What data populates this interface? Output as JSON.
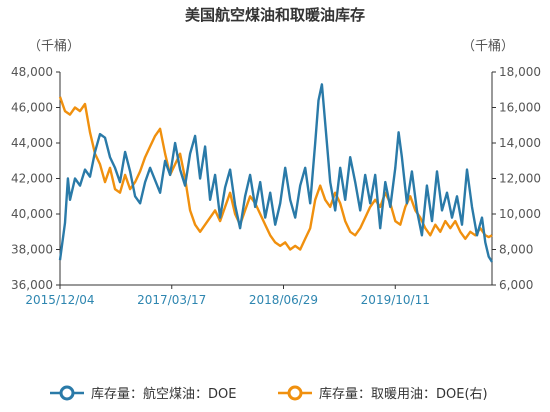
{
  "chart_data": {
    "type": "line",
    "title": "美国航空煤油和取暖油库存",
    "left_unit": "（千桶）",
    "right_unit": "（千桶）",
    "x_start": "2015/12/04",
    "x_end": "2020/11/20",
    "x_tick_labels": [
      "2015/12/04",
      "2017/03/17",
      "2018/06/29",
      "2019/10/11"
    ],
    "y_left": {
      "min": 36000,
      "max": 48000,
      "step": 2000,
      "tick_labels": [
        "36,000",
        "38,000",
        "40,000",
        "42,000",
        "44,000",
        "46,000",
        "48,000"
      ]
    },
    "y_right": {
      "min": 6000,
      "max": 18000,
      "step": 2000,
      "tick_labels": [
        "6,000",
        "8,000",
        "10,000",
        "12,000",
        "14,000",
        "16,000",
        "18,000"
      ]
    },
    "grid": false,
    "legend_position": "bottom",
    "series": [
      {
        "name": "库存量：航空煤油：DOE",
        "axis": "left",
        "color": "#2a7aa8",
        "points": [
          [
            "2015/12/04",
            37400
          ],
          [
            "2015/12/25",
            39500
          ],
          [
            "2016/01/15",
            40800
          ],
          [
            "2016/02/05",
            42000
          ],
          [
            "2016/02/26",
            41600
          ],
          [
            "2016/03/18",
            42500
          ],
          [
            "2016/04/08",
            42100
          ],
          [
            "2016/04/29",
            43500
          ],
          [
            "2016/05/20",
            44500
          ],
          [
            "2016/06/10",
            44300
          ],
          [
            "2016/07/01",
            43200
          ],
          [
            "2016/07/22",
            42600
          ],
          [
            "2016/08/12",
            41800
          ],
          [
            "2016/09/02",
            43500
          ],
          [
            "2016/09/23",
            42400
          ],
          [
            "2016/10/14",
            41000
          ],
          [
            "2016/11/04",
            40600
          ],
          [
            "2016/11/25",
            41800
          ],
          [
            "2016/12/16",
            42600
          ],
          [
            "2016/01/06",
            42000
          ],
          [
            "2017/01/27",
            41200
          ],
          [
            "2017/02/17",
            43000
          ],
          [
            "2017/03/10",
            42200
          ],
          [
            "2017/03/31",
            44000
          ],
          [
            "2017/04/21",
            42500
          ],
          [
            "2017/05/12",
            41600
          ],
          [
            "2017/06/02",
            43400
          ],
          [
            "2017/06/23",
            44400
          ],
          [
            "2017/07/14",
            42000
          ],
          [
            "2017/08/04",
            43800
          ],
          [
            "2017/08/25",
            40800
          ],
          [
            "2017/09/15",
            42200
          ],
          [
            "2017/10/06",
            39800
          ],
          [
            "2017/10/27",
            41500
          ],
          [
            "2017/11/17",
            42500
          ],
          [
            "2017/12/08",
            40500
          ],
          [
            "2017/12/29",
            39200
          ],
          [
            "2018/01/19",
            41000
          ],
          [
            "2018/02/09",
            42200
          ],
          [
            "2018/03/02",
            40400
          ],
          [
            "2018/03/23",
            41800
          ],
          [
            "2018/04/13",
            39800
          ],
          [
            "2018/05/04",
            41200
          ],
          [
            "2018/05/25",
            39400
          ],
          [
            "2018/06/15",
            40600
          ],
          [
            "2018/07/06",
            42600
          ],
          [
            "2018/07/27",
            40800
          ],
          [
            "2018/08/17",
            39800
          ],
          [
            "2018/09/07",
            41600
          ],
          [
            "2018/09/28",
            42600
          ],
          [
            "2018/10/19",
            40600
          ],
          [
            "2018/11/09",
            44000
          ],
          [
            "2018/11/23",
            46400
          ],
          [
            "2018/12/07",
            47300
          ],
          [
            "2018/12/28",
            44000
          ],
          [
            "2019/01/11",
            41800
          ],
          [
            "2019/02/01",
            40200
          ],
          [
            "2019/02/22",
            42600
          ],
          [
            "2019/03/15",
            40800
          ],
          [
            "2019/04/05",
            43200
          ],
          [
            "2019/04/26",
            41800
          ],
          [
            "2019/05/17",
            40200
          ],
          [
            "2019/06/07",
            42200
          ],
          [
            "2019/06/28",
            40600
          ],
          [
            "2019/07/19",
            42200
          ],
          [
            "2019/08/09",
            39200
          ],
          [
            "2019/08/30",
            41800
          ],
          [
            "2019/09/20",
            40400
          ],
          [
            "2019/10/11",
            42600
          ],
          [
            "2019/10/25",
            44600
          ],
          [
            "2019/11/08",
            43200
          ],
          [
            "2019/11/29",
            40600
          ],
          [
            "2019/12/20",
            42400
          ],
          [
            "2020/01/10",
            40200
          ],
          [
            "2020/01/31",
            38800
          ],
          [
            "2020/02/21",
            41600
          ],
          [
            "2020/03/13",
            39600
          ],
          [
            "2020/04/03",
            42400
          ],
          [
            "2020/04/24",
            40200
          ],
          [
            "2020/05/15",
            41200
          ],
          [
            "2020/06/05",
            39800
          ],
          [
            "2020/06/26",
            41000
          ],
          [
            "2020/07/17",
            39400
          ],
          [
            "2020/08/07",
            42500
          ],
          [
            "2020/08/28",
            40400
          ],
          [
            "2020/09/18",
            38800
          ],
          [
            "2020/10/09",
            39800
          ],
          [
            "2020/10/23",
            38400
          ],
          [
            "2020/11/06",
            37600
          ],
          [
            "2020/11/20",
            37300
          ]
        ]
      },
      {
        "name": "库存量：取暖用油：DOE(右)",
        "axis": "right",
        "color": "#f0900e",
        "points": [
          [
            "2015/12/04",
            16600
          ],
          [
            "2015/12/25",
            15800
          ],
          [
            "2016/01/15",
            15600
          ],
          [
            "2016/02/05",
            16000
          ],
          [
            "2016/02/26",
            15800
          ],
          [
            "2016/03/18",
            16200
          ],
          [
            "2016/04/08",
            14600
          ],
          [
            "2016/04/29",
            13400
          ],
          [
            "2016/05/20",
            12800
          ],
          [
            "2016/06/10",
            11800
          ],
          [
            "2016/07/01",
            12600
          ],
          [
            "2016/07/22",
            11400
          ],
          [
            "2016/08/12",
            11200
          ],
          [
            "2016/09/02",
            12200
          ],
          [
            "2016/09/23",
            11400
          ],
          [
            "2016/10/14",
            11800
          ],
          [
            "2016/11/04",
            12400
          ],
          [
            "2016/11/25",
            13200
          ],
          [
            "2016/12/16",
            13800
          ],
          [
            "2017/01/06",
            14400
          ],
          [
            "2017/01/27",
            14800
          ],
          [
            "2017/02/17",
            13400
          ],
          [
            "2017/03/10",
            12200
          ],
          [
            "2017/03/31",
            12800
          ],
          [
            "2017/04/21",
            13400
          ],
          [
            "2017/05/12",
            12000
          ],
          [
            "2017/06/02",
            10200
          ],
          [
            "2017/06/23",
            9400
          ],
          [
            "2017/07/14",
            9000
          ],
          [
            "2017/08/04",
            9400
          ],
          [
            "2017/08/25",
            9800
          ],
          [
            "2017/09/15",
            10200
          ],
          [
            "2017/10/06",
            9600
          ],
          [
            "2017/10/27",
            10400
          ],
          [
            "2017/11/17",
            11200
          ],
          [
            "2017/12/08",
            10000
          ],
          [
            "2017/12/29",
            9400
          ],
          [
            "2018/01/19",
            10200
          ],
          [
            "2018/02/09",
            11000
          ],
          [
            "2018/03/02",
            10600
          ],
          [
            "2018/03/23",
            10000
          ],
          [
            "2018/04/13",
            9400
          ],
          [
            "2018/05/04",
            8800
          ],
          [
            "2018/05/25",
            8400
          ],
          [
            "2018/06/15",
            8200
          ],
          [
            "2018/07/06",
            8400
          ],
          [
            "2018/07/27",
            8000
          ],
          [
            "2018/08/17",
            8200
          ],
          [
            "2018/09/07",
            8000
          ],
          [
            "2018/09/28",
            8600
          ],
          [
            "2018/10/19",
            9200
          ],
          [
            "2018/11/09",
            10800
          ],
          [
            "2018/11/30",
            11600
          ],
          [
            "2018/12/21",
            10800
          ],
          [
            "2019/01/11",
            10400
          ],
          [
            "2019/02/01",
            11200
          ],
          [
            "2019/02/22",
            10600
          ],
          [
            "2019/03/15",
            9600
          ],
          [
            "2019/04/05",
            9000
          ],
          [
            "2019/04/26",
            8800
          ],
          [
            "2019/05/17",
            9200
          ],
          [
            "2019/06/07",
            9800
          ],
          [
            "2019/06/28",
            10400
          ],
          [
            "2019/07/19",
            10800
          ],
          [
            "2019/08/09",
            10400
          ],
          [
            "2019/08/30",
            11200
          ],
          [
            "2019/09/20",
            10600
          ],
          [
            "2019/10/11",
            9600
          ],
          [
            "2019/11/01",
            9400
          ],
          [
            "2019/11/22",
            10400
          ],
          [
            "2019/12/13",
            11000
          ],
          [
            "2020/01/03",
            10200
          ],
          [
            "2020/01/24",
            9800
          ],
          [
            "2020/02/14",
            9200
          ],
          [
            "2020/03/06",
            8800
          ],
          [
            "2020/03/27",
            9400
          ],
          [
            "2020/04/17",
            9000
          ],
          [
            "2020/05/08",
            9600
          ],
          [
            "2020/05/29",
            9200
          ],
          [
            "2020/06/19",
            9600
          ],
          [
            "2020/07/10",
            9000
          ],
          [
            "2020/07/31",
            8600
          ],
          [
            "2020/08/21",
            9000
          ],
          [
            "2020/09/11",
            8800
          ],
          [
            "2020/10/02",
            9200
          ],
          [
            "2020/10/23",
            8800
          ],
          [
            "2020/11/06",
            8700
          ],
          [
            "2020/11/20",
            8800
          ]
        ]
      }
    ]
  }
}
